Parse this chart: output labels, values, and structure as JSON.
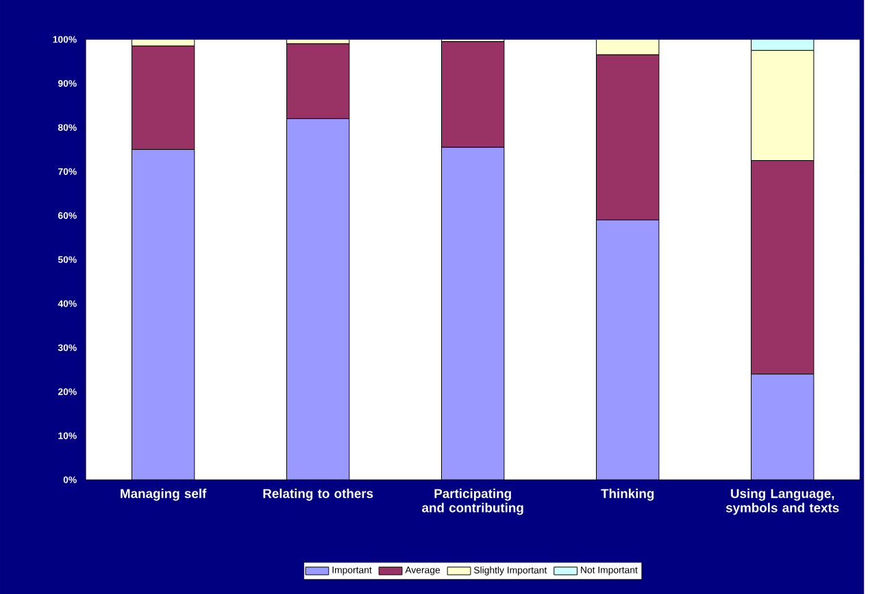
{
  "chart_data": {
    "type": "bar",
    "stacked": true,
    "categories": [
      "Managing self",
      "Relating to others",
      "Participating and contributing",
      "Thinking",
      "Using Language, symbols and texts"
    ],
    "series": [
      {
        "name": "Important",
        "color": "#9999ff",
        "values": [
          75,
          82,
          75.5,
          59,
          24
        ]
      },
      {
        "name": "Average",
        "color": "#993366",
        "values": [
          23.5,
          17,
          24,
          37.5,
          48.5
        ]
      },
      {
        "name": "Slightly Important",
        "color": "#ffffcc",
        "values": [
          1.5,
          1,
          0.5,
          3.5,
          25
        ]
      },
      {
        "name": "Not Important",
        "color": "#ccffff",
        "values": [
          0,
          0,
          0,
          0,
          2.5
        ]
      }
    ],
    "ylim": [
      0,
      100
    ],
    "yticks": [
      {
        "value": 0,
        "label": "0%"
      },
      {
        "value": 10,
        "label": "10%"
      },
      {
        "value": 20,
        "label": "20%"
      },
      {
        "value": 30,
        "label": "30%"
      },
      {
        "value": 40,
        "label": "40%"
      },
      {
        "value": 50,
        "label": "50%"
      },
      {
        "value": 60,
        "label": "60%"
      },
      {
        "value": 70,
        "label": "70%"
      },
      {
        "value": 80,
        "label": "80%"
      },
      {
        "value": 90,
        "label": "90%"
      },
      {
        "value": 100,
        "label": "100%"
      }
    ],
    "legend": "bottom",
    "grid": false
  }
}
